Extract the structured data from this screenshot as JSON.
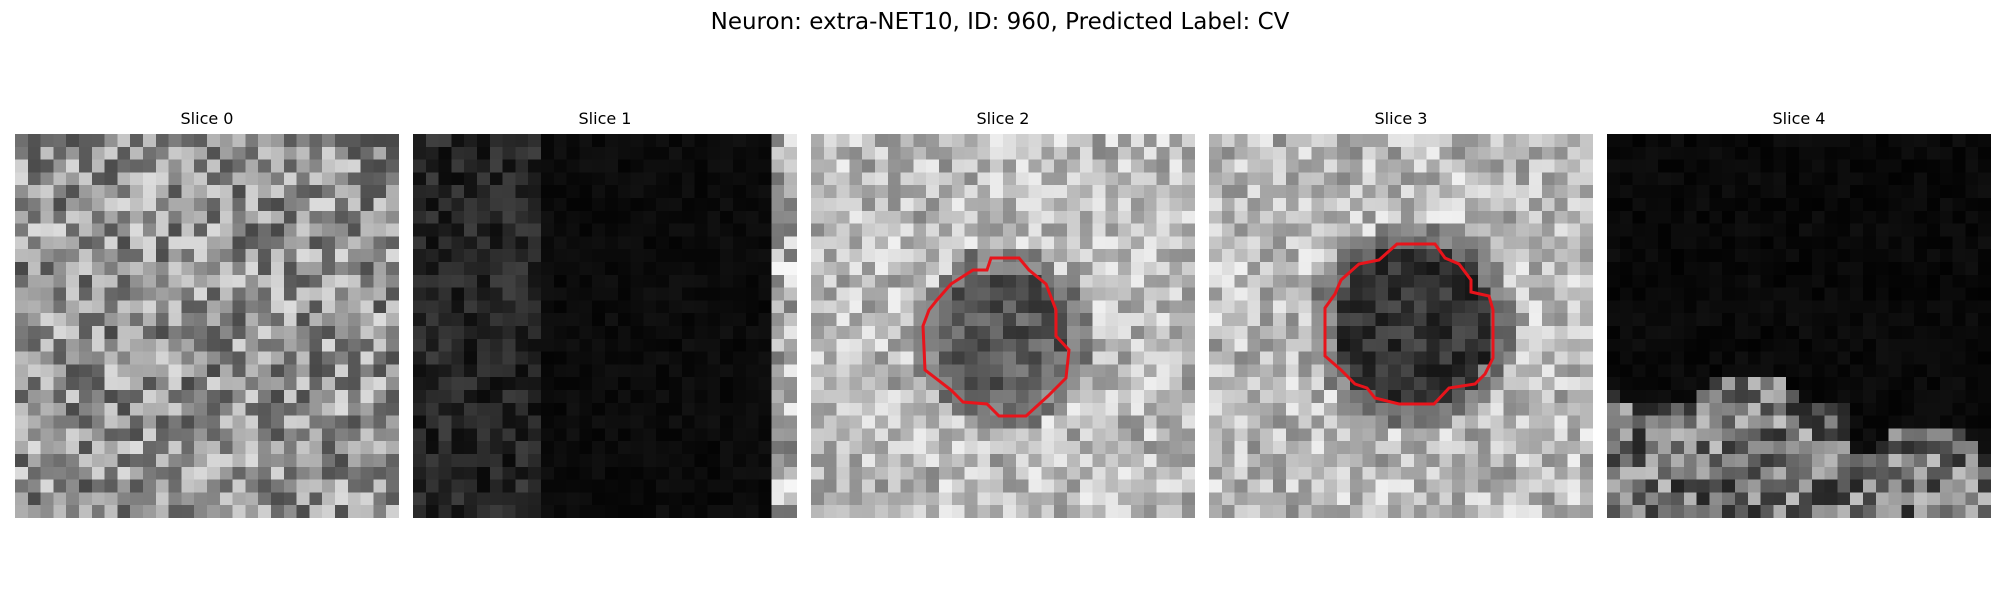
{
  "figure": {
    "title": "Neuron: extra-NET10, ID: 960, Predicted Label: CV"
  },
  "panels": [
    {
      "title": "Slice 0",
      "style": "noise-mid",
      "contour": false
    },
    {
      "title": "Slice 1",
      "style": "dark-left-noise",
      "contour": false
    },
    {
      "title": "Slice 2",
      "style": "bright-dark-blob",
      "contour": true
    },
    {
      "title": "Slice 3",
      "style": "bright-dark-blob-large",
      "contour": true
    },
    {
      "title": "Slice 4",
      "style": "dark-bottom-texture",
      "contour": false
    }
  ],
  "overlay": {
    "contour_color": "#e8141b"
  }
}
